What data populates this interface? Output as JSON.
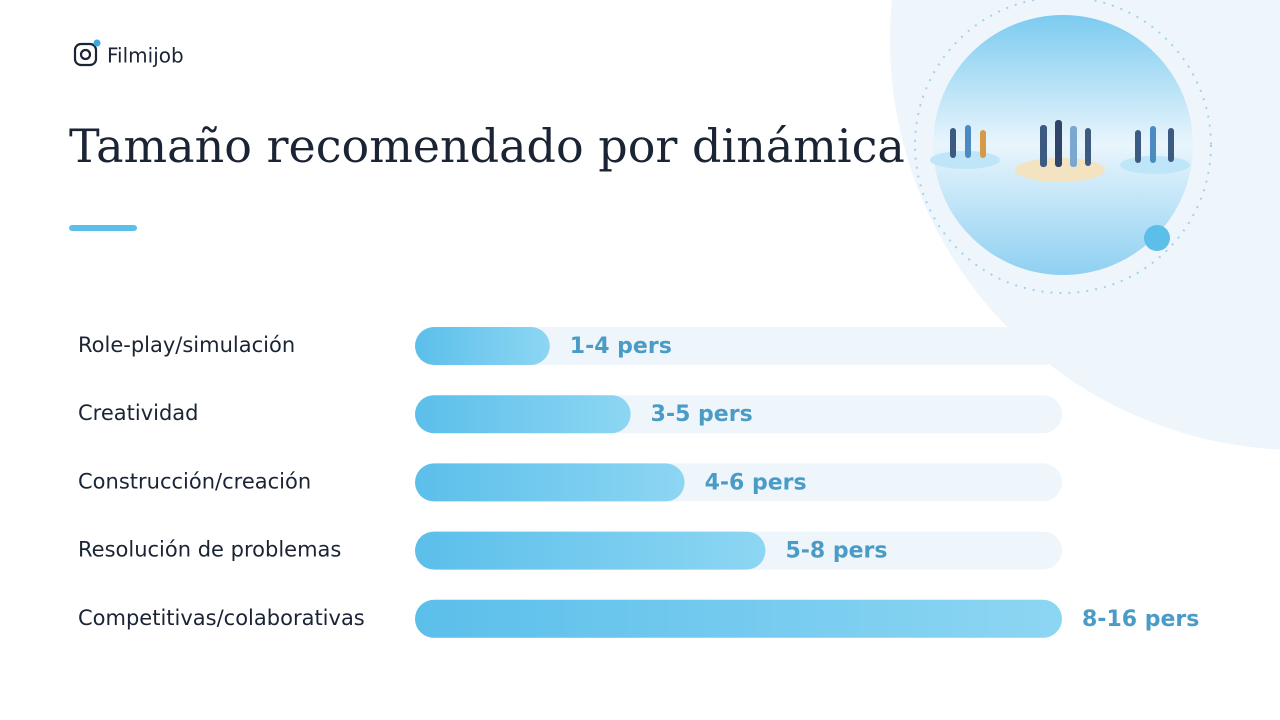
{
  "brand": "Filmijob",
  "chart_data": {
    "type": "bar",
    "orientation": "horizontal",
    "title": "Tamaño recomendado por dinámica",
    "categories": [
      "Role-play/simulación",
      "Creatividad",
      "Construcción/creación",
      "Resolución de problemas",
      "Competitivas/colaborativas"
    ],
    "values": [
      2.5,
      4,
      5,
      6.5,
      12
    ],
    "value_labels": [
      "1-4 pers",
      "3-5 pers",
      "4-6 pers",
      "5-8 pers",
      "8-16 pers"
    ],
    "xlim": [
      0,
      12
    ],
    "color": "#5bbfea"
  }
}
